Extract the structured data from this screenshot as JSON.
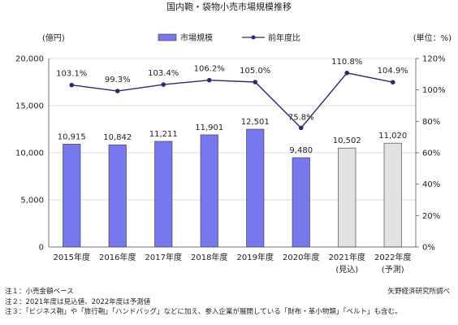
{
  "chart_data": {
    "type": "bar",
    "title": "国内鞄・袋物小売市場規模推移",
    "categories": [
      "2015年度",
      "2016年度",
      "2017年度",
      "2018年度",
      "2019年度",
      "2020年度",
      "2021年度",
      "2022年度"
    ],
    "category_notes": [
      "",
      "",
      "",
      "",
      "",
      "",
      "(見込)",
      "(予測)"
    ],
    "y_left": {
      "unit_label": "(億円)",
      "lim": [
        0,
        20000
      ],
      "ticks": [
        "0",
        "5,000",
        "10,000",
        "15,000",
        "20,000"
      ]
    },
    "y_right": {
      "unit_label": "(単位：%)",
      "lim": [
        0,
        120
      ],
      "ticks": [
        "0%",
        "20%",
        "40%",
        "60%",
        "80%",
        "100%",
        "120%"
      ]
    },
    "legend_placement": "top-center",
    "grid": true,
    "series": [
      {
        "name": "市場規模",
        "kind": "bar",
        "axis": "left",
        "values": [
          10915,
          10842,
          11211,
          11901,
          12501,
          9480,
          10502,
          11020
        ],
        "labels": [
          "10,915",
          "10,842",
          "11,211",
          "11,901",
          "12,501",
          "9,480",
          "10,502",
          "11,020"
        ],
        "colors": [
          "#7777ee",
          "#7777ee",
          "#7777ee",
          "#7777ee",
          "#7777ee",
          "#7777ee",
          "#e2e2e2",
          "#e2e2e2"
        ]
      },
      {
        "name": "前年度比",
        "kind": "line",
        "axis": "right",
        "values": [
          103.1,
          99.3,
          103.4,
          106.2,
          105.0,
          75.8,
          110.8,
          104.9
        ],
        "labels": [
          "103.1%",
          "99.3%",
          "103.4%",
          "106.2%",
          "105.0%",
          "75.8%",
          "110.8%",
          "104.9%"
        ],
        "color": "#2b2b6e"
      }
    ]
  },
  "notes": [
    "注１：小売金額ベース",
    "注２：2021年度は見込値、2022年度は予測値",
    "注３：「ビジネス鞄」や「旅行鞄」「ハンドバッグ」などに加え、参入企業が展開している「財布・革小物類」「ベルト」も含む。"
  ],
  "source": "矢野経済研究所調べ"
}
